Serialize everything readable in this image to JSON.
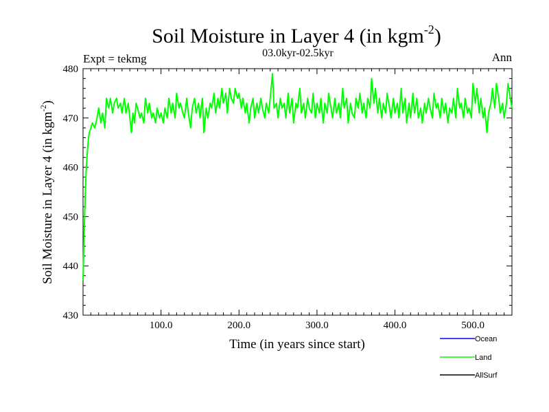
{
  "chart_data": {
    "type": "line",
    "title_main": "Soil Moisture in Layer 4 (in kgm",
    "title_exp": "-2",
    "title_close": ")",
    "subtitle_left": "Expt = tekmg",
    "subtitle_center": "03.0kyr-02.5kyr",
    "subtitle_right": "Ann",
    "xlabel": "Time (in years since start)",
    "ylabel_main": "Soil Moisture in Layer 4 (in kgm",
    "ylabel_exp": "-2",
    "ylabel_close": ")",
    "xlim": [
      0,
      550
    ],
    "ylim": [
      430,
      480
    ],
    "xticks": [
      100,
      200,
      300,
      400,
      500
    ],
    "xtick_labels": [
      "100.0",
      "200.0",
      "300.0",
      "400.0",
      "500.0"
    ],
    "yticks": [
      430,
      440,
      450,
      460,
      470,
      480
    ],
    "ytick_labels": [
      "430",
      "440",
      "450",
      "460",
      "470",
      "480"
    ],
    "series": [
      {
        "name": "Ocean",
        "color": "#0000ff",
        "values": []
      },
      {
        "name": "Land",
        "color": "#00ff00",
        "x": [
          0,
          1,
          2,
          3,
          4,
          5,
          6,
          7,
          8,
          10,
          12,
          15,
          18,
          20,
          23,
          25,
          28,
          30,
          33,
          35,
          38,
          40,
          43,
          45,
          48,
          50,
          53,
          55,
          58,
          60,
          62,
          64,
          66,
          68,
          70,
          73,
          75,
          78,
          80,
          83,
          85,
          88,
          90,
          93,
          95,
          98,
          100,
          103,
          105,
          108,
          110,
          113,
          115,
          118,
          120,
          123,
          125,
          128,
          130,
          133,
          135,
          138,
          140,
          143,
          145,
          148,
          150,
          153,
          155,
          158,
          160,
          163,
          165,
          168,
          170,
          173,
          175,
          178,
          180,
          183,
          185,
          188,
          190,
          193,
          195,
          198,
          200,
          203,
          205,
          208,
          210,
          213,
          215,
          218,
          220,
          223,
          225,
          228,
          230,
          233,
          235,
          238,
          240,
          243,
          245,
          248,
          250,
          253,
          255,
          258,
          260,
          263,
          265,
          268,
          270,
          273,
          275,
          278,
          280,
          283,
          285,
          288,
          290,
          293,
          295,
          298,
          300,
          303,
          305,
          308,
          310,
          313,
          315,
          318,
          320,
          323,
          325,
          328,
          330,
          333,
          335,
          338,
          340,
          343,
          345,
          348,
          350,
          353,
          355,
          358,
          360,
          363,
          365,
          368,
          370,
          373,
          375,
          378,
          380,
          383,
          385,
          388,
          390,
          393,
          395,
          398,
          400,
          403,
          405,
          408,
          410,
          413,
          415,
          418,
          420,
          423,
          425,
          428,
          430,
          433,
          435,
          438,
          440,
          443,
          445,
          448,
          450,
          453,
          455,
          458,
          460,
          463,
          465,
          468,
          470,
          473,
          475,
          478,
          480,
          483,
          485,
          488,
          490,
          493,
          495,
          498,
          500,
          503,
          505,
          508,
          510,
          513,
          515,
          518,
          520,
          523,
          525,
          528,
          530,
          533,
          535,
          538,
          540,
          543,
          545,
          548,
          550
        ],
        "values": [
          437,
          444,
          450,
          455,
          459,
          462,
          464,
          466,
          467,
          468,
          469,
          468,
          470,
          472,
          469,
          471,
          468,
          474,
          472,
          474,
          471,
          473,
          474,
          472,
          473,
          471,
          474,
          471,
          473,
          470,
          467,
          471,
          469,
          473,
          472,
          470,
          471,
          469,
          474,
          471,
          473,
          470,
          471,
          469,
          472,
          470,
          471,
          469,
          472,
          470,
          474,
          471,
          473,
          470,
          475,
          472,
          473,
          471,
          470,
          474,
          471,
          468,
          472,
          474,
          471,
          473,
          470,
          474,
          467,
          472,
          470,
          473,
          472,
          475,
          471,
          474,
          472,
          476,
          473,
          475,
          471,
          476,
          474,
          473,
          476,
          474,
          475,
          472,
          474,
          471,
          473,
          469,
          472,
          474,
          470,
          473,
          471,
          474,
          472,
          470,
          473,
          471,
          474,
          479,
          472,
          473,
          470,
          474,
          472,
          473,
          470,
          475,
          471,
          474,
          469,
          473,
          472,
          476,
          471,
          473,
          470,
          474,
          472,
          471,
          475,
          470,
          473,
          471,
          474,
          469,
          473,
          471,
          475,
          472,
          470,
          474,
          471,
          473,
          470,
          476,
          472,
          474,
          469,
          473,
          471,
          470,
          474,
          472,
          475,
          471,
          473,
          470,
          474,
          472,
          478,
          473,
          476,
          471,
          474,
          470,
          473,
          471,
          475,
          472,
          470,
          474,
          471,
          473,
          470,
          476,
          471,
          474,
          469,
          473,
          470,
          475,
          471,
          474,
          470,
          472,
          469,
          473,
          471,
          474,
          472,
          470,
          475,
          472,
          473,
          470,
          474,
          471,
          473,
          469,
          472,
          471,
          474,
          470,
          476,
          472,
          473,
          470,
          474,
          471,
          472,
          470,
          477,
          473,
          476,
          471,
          474,
          470,
          472,
          467,
          471,
          473,
          476,
          472,
          477,
          474,
          471,
          473,
          470,
          473,
          477,
          474,
          472
        ]
      },
      {
        "name": "AllSurf",
        "color": "#000000",
        "values": []
      }
    ],
    "legend_position": "bottom-right"
  }
}
